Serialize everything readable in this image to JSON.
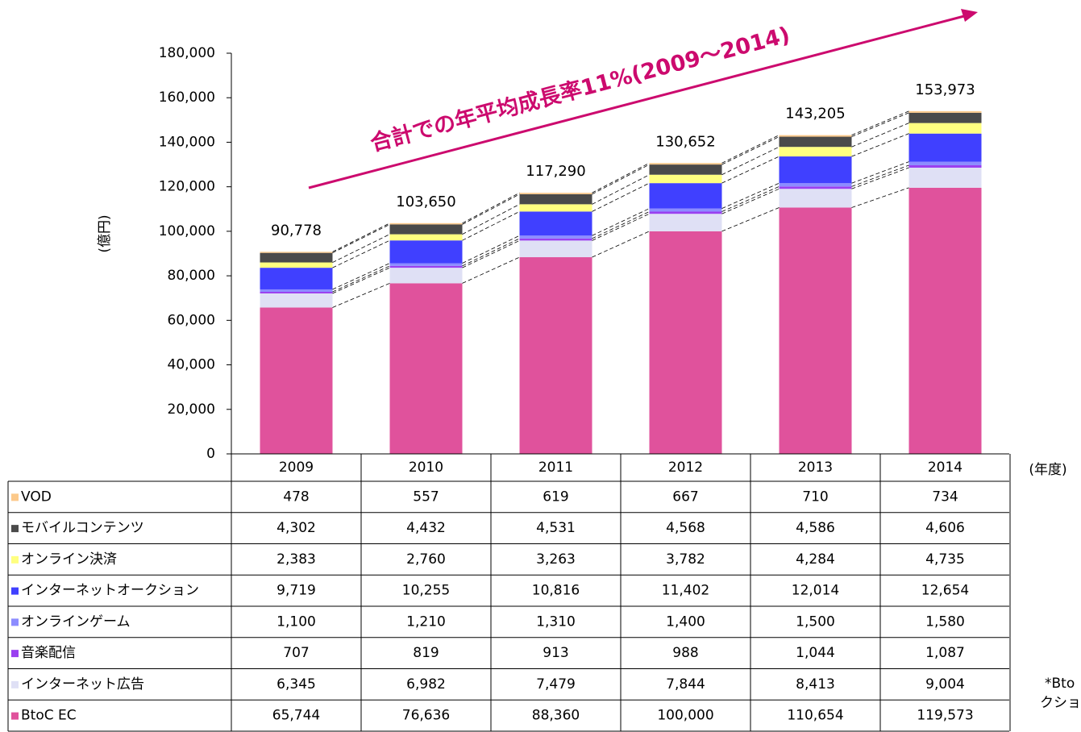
{
  "chart_data": {
    "type": "stacked_bar",
    "annotation": "合計での年平均成長率11%(2009～2014)",
    "y_axis_label": "(億円)",
    "x_axis_label": "(年度)",
    "footnotes": [
      "*Bto",
      "クショ"
    ],
    "categories": [
      "2009",
      "2010",
      "2011",
      "2012",
      "2013",
      "2014"
    ],
    "ylim": [
      0,
      180000
    ],
    "yticks": [
      0,
      {
        "value": 20000,
        "label": "20,000"
      },
      {
        "value": 40000,
        "label": "40,000"
      },
      {
        "value": 60000,
        "label": "60,000"
      },
      {
        "value": 80000,
        "label": "80,000"
      },
      {
        "value": 100000,
        "label": "100,000"
      },
      {
        "value": 120000,
        "label": "120,000"
      },
      {
        "value": 140000,
        "label": "140,000"
      },
      {
        "value": 160000,
        "label": "160,000"
      },
      {
        "value": 180000,
        "label": "180,000"
      }
    ],
    "totals": {
      "values": [
        90778,
        103650,
        117290,
        130652,
        143205,
        153973
      ],
      "value_labels": [
        "90,778",
        "103,650",
        "117,290",
        "130,652",
        "143,205",
        "153,973"
      ]
    },
    "series": [
      {
        "name": "BtoC EC",
        "color": "#e0529c",
        "values": [
          65744,
          76636,
          88360,
          100000,
          110654,
          119573
        ],
        "value_labels": [
          "65,744",
          "76,636",
          "88,360",
          "100,000",
          "110,654",
          "119,573"
        ]
      },
      {
        "name": "インターネット広告",
        "color": "#dfe0f5",
        "values": [
          6345,
          6982,
          7479,
          7844,
          8413,
          9004
        ],
        "value_labels": [
          "6,345",
          "6,982",
          "7,479",
          "7,844",
          "8,413",
          "9,004"
        ]
      },
      {
        "name": "音楽配信",
        "color": "#9a40f0",
        "values": [
          707,
          819,
          913,
          988,
          1044,
          1087
        ],
        "value_labels": [
          "707",
          "819",
          "913",
          "988",
          "1,044",
          "1,087"
        ]
      },
      {
        "name": "オンラインゲーム",
        "color": "#8c8cff",
        "values": [
          1100,
          1210,
          1310,
          1400,
          1500,
          1580
        ],
        "value_labels": [
          "1,100",
          "1,210",
          "1,310",
          "1,400",
          "1,500",
          "1,580"
        ]
      },
      {
        "name": "インターネットオークション",
        "color": "#4040ff",
        "values": [
          9719,
          10255,
          10816,
          11402,
          12014,
          12654
        ],
        "value_labels": [
          "9,719",
          "10,255",
          "10,816",
          "11,402",
          "12,014",
          "12,654"
        ]
      },
      {
        "name": "オンライン決済",
        "color": "#ffff80",
        "values": [
          2383,
          2760,
          3263,
          3782,
          4284,
          4735
        ],
        "value_labels": [
          "2,383",
          "2,760",
          "3,263",
          "3,782",
          "4,284",
          "4,735"
        ]
      },
      {
        "name": "モバイルコンテンツ",
        "color": "#4a4a4a",
        "values": [
          4302,
          4432,
          4531,
          4568,
          4586,
          4606
        ],
        "value_labels": [
          "4,302",
          "4,432",
          "4,531",
          "4,568",
          "4,586",
          "4,606"
        ]
      },
      {
        "name": "VOD",
        "color": "#fcc98a",
        "values": [
          478,
          557,
          619,
          667,
          710,
          734
        ],
        "value_labels": [
          "478",
          "557",
          "619",
          "667",
          "710",
          "734"
        ]
      }
    ]
  }
}
